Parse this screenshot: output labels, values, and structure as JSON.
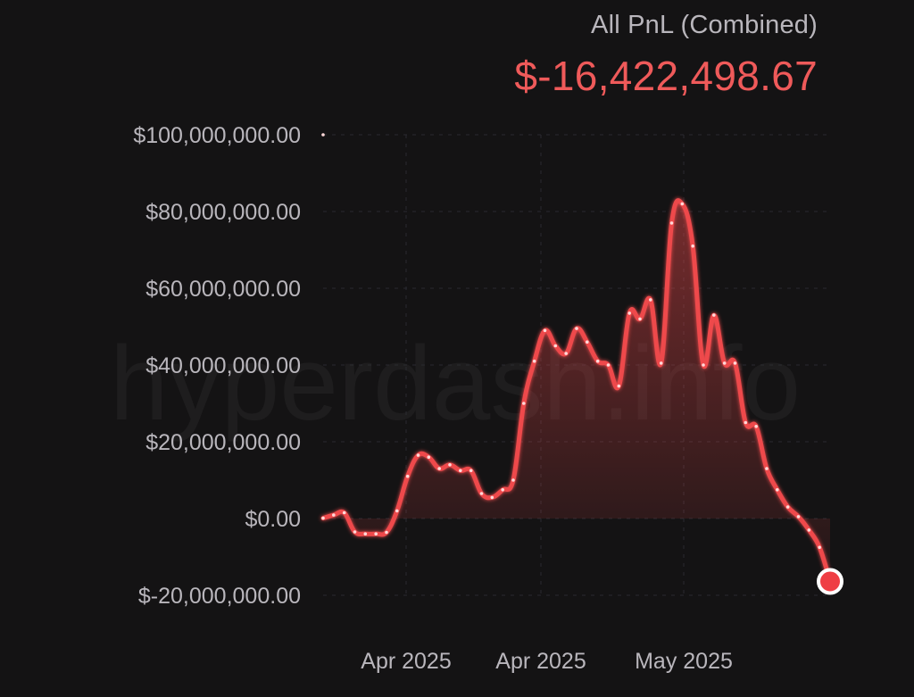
{
  "header": {
    "title": "All PnL (Combined)",
    "value": "$-16,422,498.67"
  },
  "watermark": "hyperdash.info",
  "colors": {
    "background": "#141314",
    "line": "#ee4a4c",
    "value_text": "#ef5a5a",
    "axis_text": "#b9b6bc",
    "grid": "#2a2a30",
    "point": "#ffd9d9",
    "end_marker_fill": "#ef3e44",
    "end_marker_ring": "#ffffff"
  },
  "chart_data": {
    "type": "area",
    "title": "All PnL (Combined)",
    "ylim": [
      -20000000,
      100000000
    ],
    "y_ticks": [
      {
        "value": 100000000,
        "label": "$100,000,000.00"
      },
      {
        "value": 80000000,
        "label": "$80,000,000.00"
      },
      {
        "value": 60000000,
        "label": "$60,000,000.00"
      },
      {
        "value": 40000000,
        "label": "$40,000,000.00"
      },
      {
        "value": 20000000,
        "label": "$20,000,000.00"
      },
      {
        "value": 0,
        "label": "$0.00"
      },
      {
        "value": -20000000,
        "label": "$-20,000,000.00"
      }
    ],
    "x_ticks": [
      "Apr 2025",
      "Apr 2025",
      "May 2025"
    ],
    "grid": true,
    "last_value": -16422498.67,
    "series": [
      {
        "values": [
          0.1,
          0.9,
          1.5,
          -3.5,
          -4.0,
          -4.0,
          -3.6,
          2.0,
          11.0,
          16.5,
          16.0,
          13.0,
          14.0,
          12.5,
          12.5,
          6.5,
          5.5,
          7.5,
          10.0,
          30.0,
          41.0,
          49.0,
          45.0,
          43.0,
          49.5,
          46.0,
          41.0,
          40.0,
          34.5,
          53.5,
          52.0,
          57.0,
          40.5,
          77.0,
          82.0,
          71.0,
          40.0,
          53.0,
          40.5,
          40.5,
          25.0,
          24.0,
          13.0,
          7.5,
          3.0,
          0.5,
          -3.0,
          -7.5,
          -16.4
        ]
      }
    ]
  }
}
